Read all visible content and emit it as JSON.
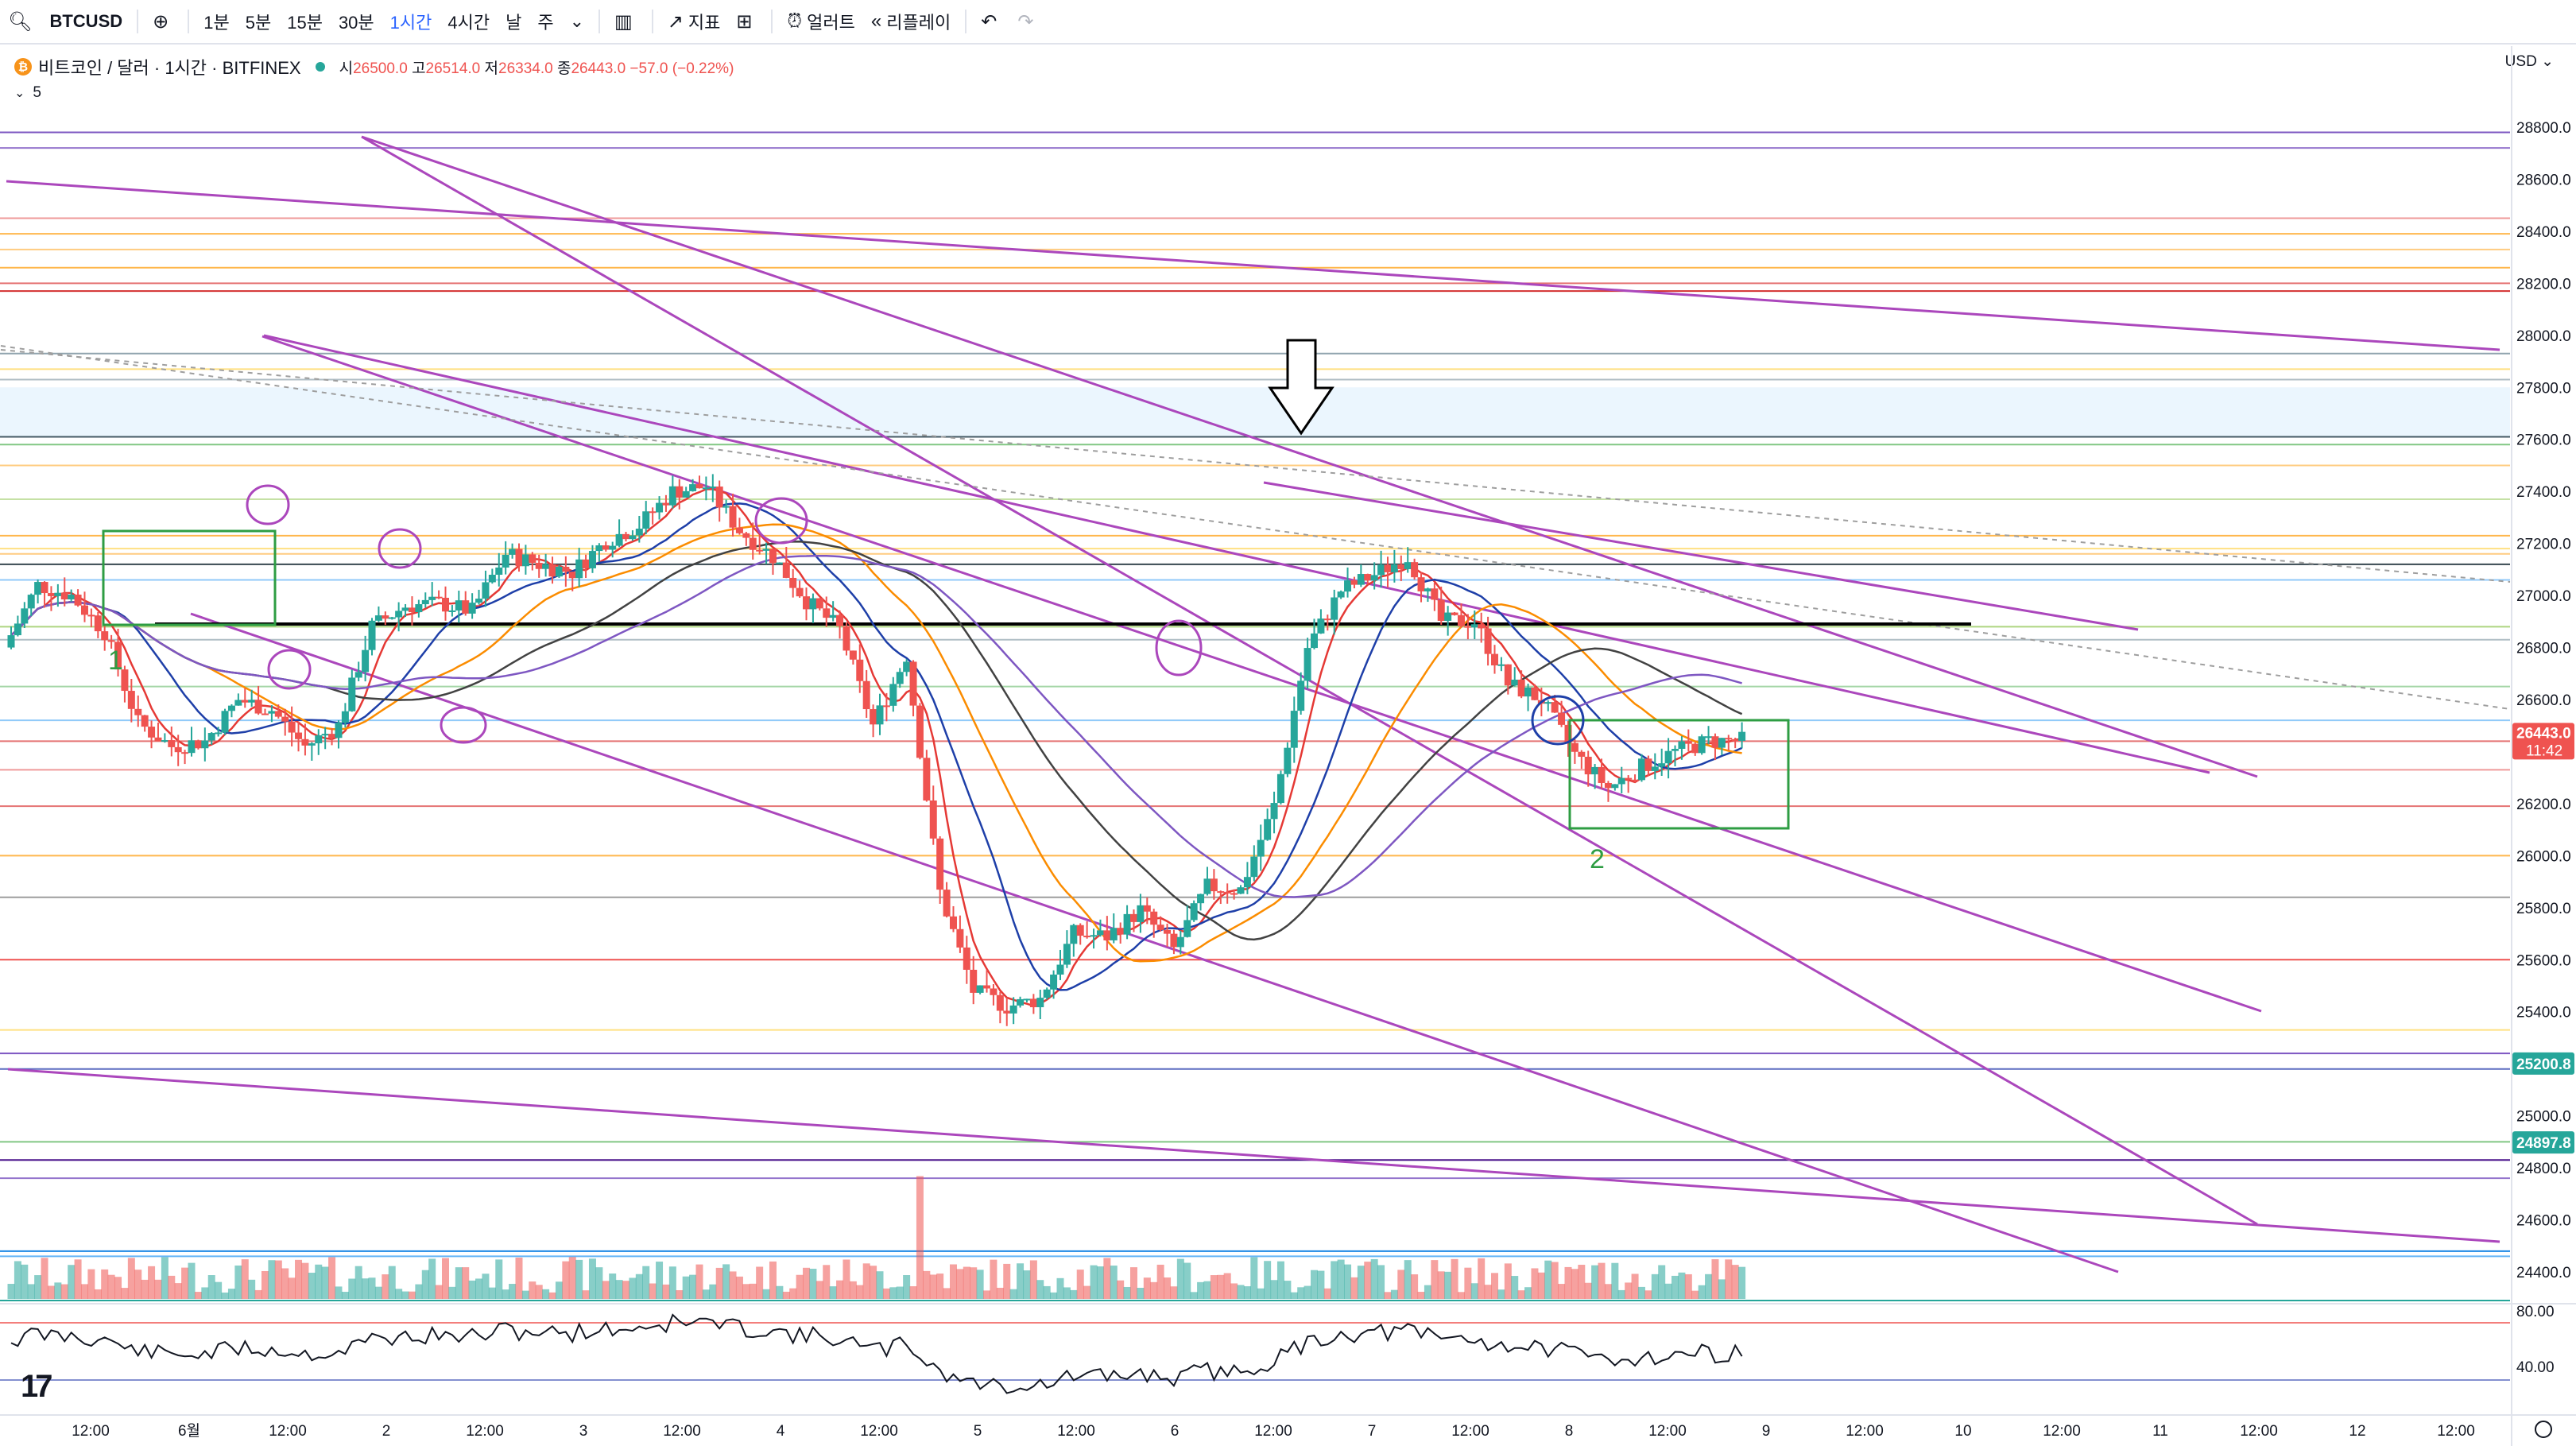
{
  "toolbar": {
    "symbol": "BTCUSD",
    "intervals": [
      "1분",
      "5분",
      "15분",
      "30분",
      "1시간",
      "4시간",
      "날",
      "주"
    ],
    "active_interval": "1시간",
    "indicators_label": "지표",
    "alert_label": "얼러트",
    "replay_label": "리플레이"
  },
  "legend": {
    "title": "비트코인 / 달러 · 1시간 · BITFINEX",
    "open_label": "시",
    "open": "26500.0",
    "high_label": "고",
    "high": "26514.0",
    "low_label": "저",
    "low": "26334.0",
    "close_label": "종",
    "close": "26443.0",
    "change": "−57.0 (−0.22%)",
    "indicator_value": "5"
  },
  "currency": "USD",
  "price_axis": {
    "ticks": [
      "28800.0",
      "28600.0",
      "28400.0",
      "28200.0",
      "28000.0",
      "27800.0",
      "27600.0",
      "27400.0",
      "27200.0",
      "27000.0",
      "26800.0",
      "26600.0",
      "26400.0",
      "26200.0",
      "26000.0",
      "25800.0",
      "25600.0",
      "25400.0",
      "25200.0",
      "25000.0",
      "24800.0",
      "24600.0",
      "24400.0"
    ],
    "last_price": "26443.0",
    "countdown": "11:42",
    "marker_1": "25200.8",
    "marker_2": "24897.8",
    "osc_ticks": [
      "80.00",
      "40.00"
    ]
  },
  "time_axis": [
    "12:00",
    "6월",
    "12:00",
    "2",
    "12:00",
    "3",
    "12:00",
    "4",
    "12:00",
    "5",
    "12:00",
    "6",
    "12:00",
    "7",
    "12:00",
    "8",
    "12:00",
    "9",
    "12:00",
    "10",
    "12:00",
    "11",
    "12:00",
    "12",
    "12:00"
  ],
  "annotations": {
    "label_1": "1",
    "label_2": "2"
  },
  "colors": {
    "up": "#26a69a",
    "down": "#ef5350",
    "channel": "#ab47bc",
    "box": "#2e9d43"
  },
  "chart_data": {
    "type": "candlestick",
    "instrument": "BTCUSD",
    "interval": "1h",
    "ylim": [
      24200,
      28900
    ],
    "last_close": 26443.0,
    "close_path": [
      26800,
      27040,
      27000,
      26860,
      26510,
      26420,
      26440,
      26600,
      26560,
      26420,
      26500,
      26880,
      26960,
      26970,
      26940,
      27160,
      27120,
      27090,
      27210,
      27270,
      27400,
      27420,
      27250,
      27150,
      26980,
      26870,
      26500,
      26770,
      25860,
      25480,
      25420,
      25450,
      25700,
      25690,
      25790,
      25640,
      25880,
      25870,
      26190,
      26800,
      27020,
      27080,
      27150,
      26900,
      26900,
      26660,
      26600,
      26390,
      26260,
      26340,
      26400,
      26440,
      26443
    ]
  }
}
